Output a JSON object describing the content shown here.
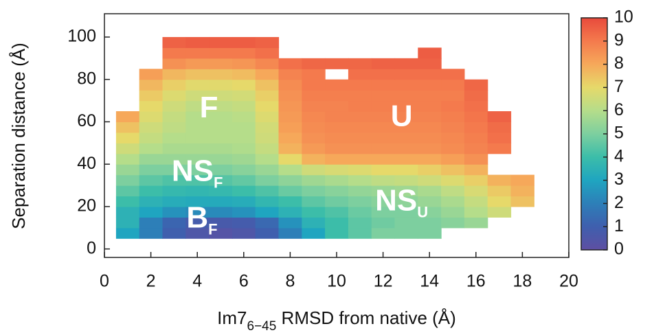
{
  "chart_data": {
    "type": "heatmap",
    "xlabel": {
      "text": "Im7",
      "sub": "6−45",
      "rest": " RMSD from native (Å)"
    },
    "ylabel": "Separation distance (Å)",
    "xlim": [
      0,
      20
    ],
    "ylim": [
      -4,
      111
    ],
    "xticks": [
      0,
      2,
      4,
      6,
      8,
      10,
      12,
      14,
      16,
      18,
      20
    ],
    "yticks": [
      0,
      20,
      40,
      60,
      80,
      100
    ],
    "xbins": [
      0.5,
      1.5,
      2.5,
      3.5,
      4.5,
      5.5,
      6.5,
      7.5,
      8.5,
      9.5,
      10.5,
      11.5,
      12.5,
      13.5,
      14.5,
      15.5,
      16.5,
      17.5,
      18.5
    ],
    "ybins": [
      5,
      10,
      15,
      20,
      25,
      30,
      35,
      40,
      45,
      50,
      55,
      60,
      65,
      70,
      75,
      80,
      85,
      90,
      95,
      100
    ],
    "z": [
      [
        3,
        2,
        1,
        0.5,
        0.3,
        0.5,
        1,
        2,
        3,
        4,
        4.5,
        5,
        5,
        5,
        null,
        null,
        null,
        null
      ],
      [
        3.5,
        2,
        1.2,
        0.8,
        0.7,
        0.8,
        1.3,
        2.5,
        3.5,
        4,
        4.5,
        4.8,
        5,
        5,
        5.2,
        5.5,
        null,
        null
      ],
      [
        3.5,
        3,
        2.5,
        2.3,
        2.3,
        2.5,
        3,
        3.5,
        4,
        4.3,
        4.7,
        5,
        5,
        5.2,
        5.5,
        6,
        6.5,
        null
      ],
      [
        4,
        3.5,
        3.3,
        3.2,
        3.2,
        3.3,
        3.7,
        4,
        4.5,
        4.8,
        5,
        5.2,
        5.3,
        5.5,
        5.8,
        6.3,
        7,
        7.5
      ],
      [
        4.5,
        4,
        3.8,
        3.7,
        3.8,
        4,
        4.3,
        4.7,
        5,
        5.2,
        5.4,
        5.5,
        5.6,
        5.8,
        6.2,
        6.7,
        7.3,
        7.8
      ],
      [
        5,
        4.5,
        4.3,
        4.3,
        4.4,
        4.6,
        5,
        5.3,
        5.6,
        5.8,
        6,
        6.2,
        6.3,
        6.5,
        6.8,
        7.2,
        7.8,
        8
      ],
      [
        5.5,
        5,
        5,
        5,
        5,
        5.2,
        5.5,
        6,
        6.5,
        6.7,
        6.8,
        7,
        7,
        7.2,
        7.5,
        7.8,
        null,
        null
      ],
      [
        6,
        5.5,
        5.5,
        5.5,
        5.5,
        5.6,
        6,
        7,
        7.8,
        8,
        8,
        8,
        8,
        8,
        8.2,
        8.5,
        null,
        null
      ],
      [
        6.5,
        6,
        5.8,
        5.8,
        5.8,
        5.9,
        6.3,
        7.8,
        8.3,
        8.5,
        8.5,
        8.5,
        8.5,
        8.5,
        8.6,
        8.8,
        9,
        null
      ],
      [
        7,
        6.3,
        6,
        6,
        6,
        6,
        6.5,
        8,
        8.5,
        8.6,
        8.6,
        8.6,
        8.6,
        8.6,
        8.7,
        8.9,
        9.2,
        null
      ],
      [
        7.5,
        6.5,
        6.2,
        6,
        6,
        6,
        6.6,
        8.2,
        8.6,
        8.7,
        8.7,
        8.7,
        8.7,
        8.7,
        8.8,
        9,
        9.3,
        null
      ],
      [
        8,
        6.8,
        6.3,
        6,
        6,
        6.1,
        6.8,
        8.3,
        8.7,
        8.8,
        8.8,
        8.8,
        8.8,
        8.8,
        8.9,
        9.1,
        9.5,
        null
      ],
      [
        null,
        7,
        6.5,
        6.2,
        6.2,
        6.3,
        7,
        8.4,
        8.8,
        8.8,
        8.9,
        8.9,
        8.9,
        8.9,
        9,
        9.2,
        null,
        null
      ],
      [
        null,
        7.3,
        6.8,
        6.5,
        6.5,
        6.6,
        7.2,
        8.5,
        8.9,
        8.9,
        8.9,
        8.9,
        8.9,
        8.9,
        8.9,
        9.3,
        null,
        null
      ],
      [
        null,
        7.7,
        7.2,
        6.9,
        6.9,
        7,
        7.5,
        8.6,
        9,
        9,
        9,
        9,
        9,
        9,
        9,
        9.4,
        null,
        null
      ],
      [
        null,
        8.2,
        7.7,
        7.5,
        7.5,
        7.6,
        8,
        8.8,
        9,
        null,
        9.2,
        9.2,
        9.2,
        9.2,
        9.2,
        null,
        null,
        null
      ],
      [
        null,
        null,
        8.5,
        8.3,
        8.3,
        8.4,
        8.7,
        9.2,
        9.4,
        9.4,
        9.4,
        9.5,
        9.5,
        9.5,
        null,
        null,
        null,
        null
      ],
      [
        null,
        null,
        9,
        9,
        9,
        9,
        9.2,
        null,
        null,
        null,
        null,
        null,
        null,
        9.6,
        null,
        null,
        null,
        null
      ],
      [
        null,
        null,
        9.5,
        9.6,
        9.6,
        9.6,
        9.5,
        null,
        null,
        null,
        null,
        null,
        null,
        null,
        null,
        null,
        null,
        null
      ]
    ],
    "zlim": [
      0,
      10
    ],
    "zticks": [
      0,
      1,
      2,
      3,
      4,
      5,
      6,
      7,
      8,
      9,
      10
    ],
    "colorscale": [
      "#5e4fa2",
      "#3f5fae",
      "#2d7fb8",
      "#1fa5c0",
      "#3cbda9",
      "#7dcf9f",
      "#b5dd8a",
      "#e6d96a",
      "#f6a85a",
      "#f47a4d",
      "#e84a3c"
    ],
    "annotations": [
      {
        "text": "F",
        "x": 4.5,
        "y": 66
      },
      {
        "text": "U",
        "x": 12.8,
        "y": 62
      },
      {
        "text": "NS",
        "sub": "F",
        "x": 4,
        "y": 36
      },
      {
        "text": "B",
        "sub": "F",
        "x": 4.2,
        "y": 14
      },
      {
        "text": "NS",
        "sub": "U",
        "x": 12.8,
        "y": 22
      }
    ]
  }
}
